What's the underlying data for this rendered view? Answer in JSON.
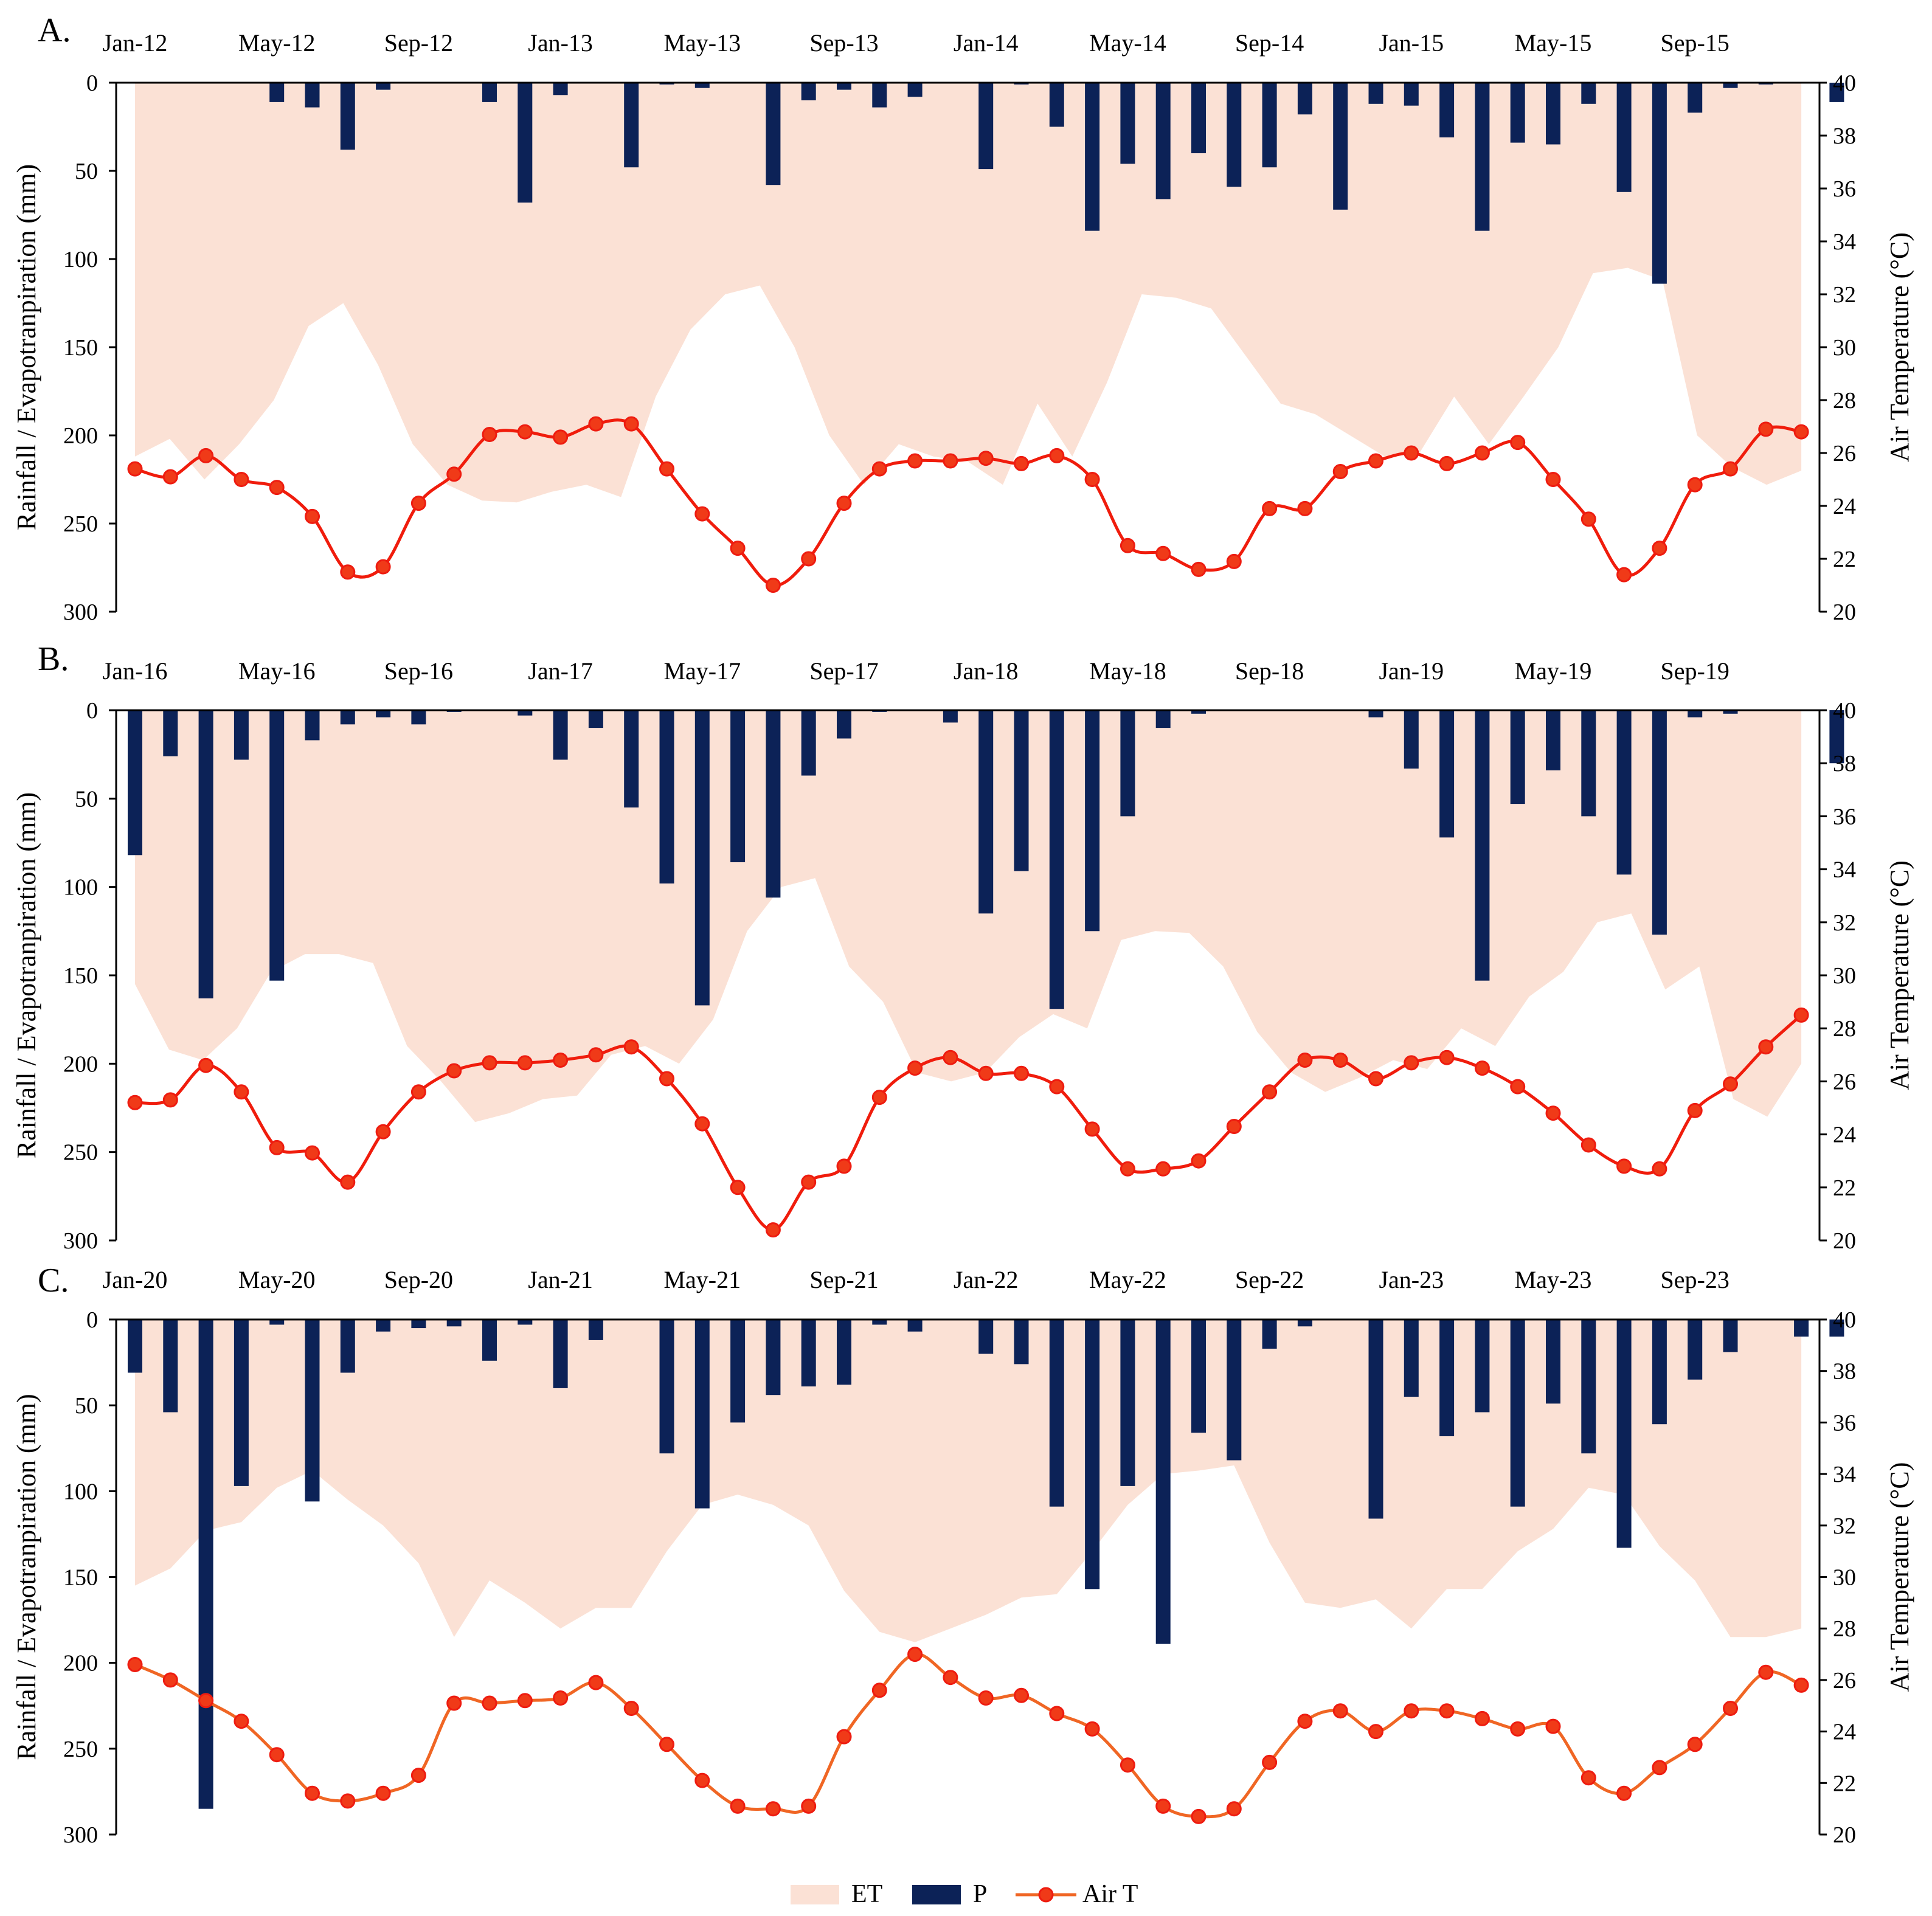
{
  "colors": {
    "et": "#fbe1d5",
    "p": "#0c2257",
    "airT_ab": "#f01c0c",
    "airT_c": "#f06624",
    "marker": "#f03a18",
    "marker_edge": "#ee1c10"
  },
  "legend": {
    "et": "ET",
    "p": "P",
    "airT": "Air T"
  },
  "chart_data": [
    {
      "type": "bar",
      "panel_label": "A.",
      "months_start": "2012-01",
      "tick_labels": [
        "Jan-12",
        "May-12",
        "Sep-12",
        "Jan-13",
        "May-13",
        "Sep-13",
        "Jan-14",
        "May-14",
        "Sep-14",
        "Jan-15",
        "May-15",
        "Sep-15"
      ],
      "ylabel_left": "Rainfall / Evapotranpiration  (mm)",
      "ylabel_right": "Air Temperature (°C)",
      "ylim_left": [
        0,
        300
      ],
      "ylim_left_inverted": true,
      "ylim_right": [
        20,
        40
      ],
      "yticks_left": [
        "0",
        "50",
        "100",
        "150",
        "200",
        "250",
        "300"
      ],
      "yticks_right": [
        "20",
        "22",
        "24",
        "26",
        "28",
        "30",
        "32",
        "34",
        "36",
        "38",
        "40"
      ],
      "series": [
        {
          "name": "ET",
          "kind": "area",
          "values": [
            212,
            202,
            225,
            205,
            180,
            138,
            125,
            160,
            205,
            228,
            237,
            238,
            232,
            228,
            235,
            178,
            140,
            120,
            115,
            150,
            200,
            228,
            205,
            212,
            215,
            228,
            182,
            212,
            170,
            120,
            122,
            128,
            155,
            182,
            188,
            200,
            212,
            210,
            178,
            205,
            178,
            150,
            108,
            105,
            112,
            200,
            218,
            228,
            220
          ]
        },
        {
          "name": "P",
          "kind": "bar",
          "values": [
            0,
            0,
            0,
            0,
            11,
            14,
            38,
            4,
            0,
            0,
            11,
            68,
            7,
            0,
            48,
            1,
            3,
            0,
            58,
            10,
            4,
            14,
            8,
            0,
            49,
            1,
            25,
            84,
            46,
            66,
            40,
            59,
            48,
            18,
            72,
            12,
            13,
            31,
            84,
            34,
            35,
            12,
            62,
            114,
            17,
            3,
            1,
            0,
            11
          ]
        },
        {
          "name": "Air T",
          "kind": "line",
          "values": [
            25.4,
            25.1,
            25.9,
            25.0,
            24.7,
            23.6,
            21.5,
            21.7,
            24.1,
            25.2,
            26.7,
            26.8,
            26.6,
            27.1,
            27.1,
            25.4,
            23.7,
            22.4,
            21.0,
            22.0,
            24.1,
            25.4,
            25.7,
            25.7,
            25.8,
            25.6,
            25.9,
            25.0,
            22.5,
            22.2,
            21.6,
            21.9,
            23.9,
            23.9,
            25.3,
            25.7,
            26.0,
            25.6,
            26.0,
            26.4,
            25.0,
            23.5,
            21.4,
            22.4,
            24.8,
            25.4,
            26.9,
            26.8
          ]
        }
      ]
    },
    {
      "type": "bar",
      "panel_label": "B.",
      "months_start": "2016-01",
      "tick_labels": [
        "Jan-16",
        "May-16",
        "Sep-16",
        "Jan-17",
        "May-17",
        "Sep-17",
        "Jan-18",
        "May-18",
        "Sep-18",
        "Jan-19",
        "May-19",
        "Sep-19"
      ],
      "ylabel_left": "Rainfall / Evapotranpiration  (mm)",
      "ylabel_right": "Air Temperature (°C)",
      "ylim_left": [
        0,
        300
      ],
      "ylim_left_inverted": true,
      "ylim_right": [
        20,
        40
      ],
      "yticks_left": [
        "0",
        "50",
        "100",
        "150",
        "200",
        "250",
        "300"
      ],
      "yticks_right": [
        "20",
        "22",
        "24",
        "26",
        "28",
        "30",
        "32",
        "34",
        "36",
        "38",
        "40"
      ],
      "series": [
        {
          "name": "ET",
          "kind": "area",
          "values": [
            155,
            192,
            198,
            180,
            148,
            138,
            138,
            143,
            190,
            210,
            233,
            228,
            220,
            218,
            195,
            190,
            200,
            175,
            125,
            100,
            95,
            145,
            165,
            205,
            210,
            205,
            185,
            172,
            180,
            130,
            125,
            126,
            145,
            182,
            205,
            216,
            208,
            198,
            203,
            180,
            190,
            162,
            148,
            120,
            115,
            158,
            145,
            220,
            230,
            200
          ]
        },
        {
          "name": "P",
          "kind": "bar",
          "values": [
            82,
            26,
            163,
            28,
            153,
            17,
            8,
            4,
            8,
            1,
            0,
            3,
            28,
            10,
            55,
            98,
            167,
            86,
            106,
            37,
            16,
            1,
            0,
            7,
            115,
            91,
            169,
            125,
            60,
            10,
            2,
            0,
            0,
            0,
            0,
            4,
            33,
            72,
            153,
            53,
            34,
            60,
            93,
            127,
            4,
            2,
            0,
            0,
            30
          ]
        },
        {
          "name": "Air T",
          "kind": "line",
          "values": [
            25.2,
            25.3,
            26.6,
            25.6,
            23.5,
            23.3,
            22.2,
            24.1,
            25.6,
            26.4,
            26.7,
            26.7,
            26.8,
            27.0,
            27.3,
            26.1,
            24.4,
            22.0,
            20.4,
            22.2,
            22.8,
            25.4,
            26.5,
            26.9,
            26.3,
            26.3,
            25.8,
            24.2,
            22.7,
            22.7,
            23.0,
            24.3,
            25.6,
            26.8,
            26.8,
            26.1,
            26.7,
            26.9,
            26.5,
            25.8,
            24.8,
            23.6,
            22.8,
            22.7,
            24.9,
            25.9,
            27.3,
            28.5
          ]
        }
      ]
    },
    {
      "type": "bar",
      "panel_label": "C.",
      "months_start": "2020-01",
      "tick_labels": [
        "Jan-20",
        "May-20",
        "Sep-20",
        "Jan-21",
        "May-21",
        "Sep-21",
        "Jan-22",
        "May-22",
        "Sep-22",
        "Jan-23",
        "May-23",
        "Sep-23"
      ],
      "ylabel_left": "Rainfall / Evapotranpiration  (mm)",
      "ylabel_right": "Air Temperature (°C)",
      "ylim_left": [
        0,
        300
      ],
      "ylim_left_inverted": true,
      "ylim_right": [
        20,
        40
      ],
      "yticks_left": [
        "0",
        "50",
        "100",
        "150",
        "200",
        "250",
        "300"
      ],
      "yticks_right": [
        "20",
        "22",
        "24",
        "26",
        "28",
        "30",
        "32",
        "34",
        "36",
        "38",
        "40"
      ],
      "series": [
        {
          "name": "ET",
          "kind": "area",
          "values": [
            155,
            145,
            123,
            118,
            98,
            88,
            105,
            120,
            142,
            185,
            152,
            165,
            180,
            168,
            168,
            135,
            108,
            102,
            108,
            120,
            158,
            182,
            188,
            180,
            172,
            162,
            160,
            135,
            108,
            90,
            88,
            85,
            130,
            165,
            168,
            163,
            180,
            157,
            157,
            135,
            122,
            98,
            102,
            132,
            152,
            185,
            185,
            180
          ]
        },
        {
          "name": "P",
          "kind": "bar",
          "values": [
            31,
            54,
            285,
            97,
            3,
            106,
            31,
            7,
            5,
            4,
            24,
            3,
            40,
            12,
            0,
            78,
            110,
            60,
            44,
            39,
            38,
            3,
            7,
            0,
            20,
            26,
            109,
            157,
            97,
            189,
            66,
            82,
            17,
            4,
            0,
            116,
            45,
            68,
            54,
            109,
            49,
            78,
            133,
            61,
            35,
            19,
            0,
            10,
            10
          ]
        },
        {
          "name": "Air T",
          "kind": "line",
          "values": [
            26.6,
            26.0,
            25.2,
            24.4,
            23.1,
            21.6,
            21.3,
            21.6,
            22.3,
            25.1,
            25.1,
            25.2,
            25.3,
            25.9,
            24.9,
            23.5,
            22.1,
            21.1,
            21.0,
            21.1,
            23.8,
            25.6,
            27.0,
            26.1,
            25.3,
            25.4,
            24.7,
            24.1,
            22.7,
            21.1,
            20.7,
            21.0,
            22.8,
            24.4,
            24.8,
            24.0,
            24.8,
            24.8,
            24.5,
            24.1,
            24.2,
            22.2,
            21.6,
            22.6,
            23.5,
            24.9,
            26.3,
            25.8
          ]
        }
      ]
    }
  ]
}
